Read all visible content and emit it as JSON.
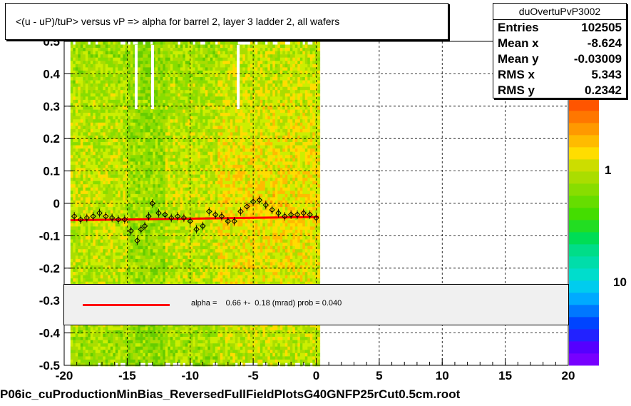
{
  "title": "<(u - uP)/tuP> versus   vP => alpha for barrel 2, layer 3 ladder 2, all wafers",
  "stats": {
    "name": "duOvertuPvP3002",
    "rows": [
      {
        "label": "Entries",
        "value": "102505"
      },
      {
        "label": "Mean x",
        "value": "-8.624"
      },
      {
        "label": "Mean y",
        "value": "-0.03009"
      },
      {
        "label": "RMS x",
        "value": "5.343"
      },
      {
        "label": "RMS y",
        "value": "0.2342"
      }
    ]
  },
  "fit_legend": {
    "text": "alpha =    0.66 +-  0.18 (mrad) prob = 0.040",
    "line_color": "#ff0000"
  },
  "footer": "P06ic_cuProductionMinBias_ReversedFullFieldPlotsG40GNFP25rCut0.5cm.root",
  "chart_data": {
    "type": "heatmap",
    "title": "<(u - uP)/tuP> versus   vP => alpha for barrel 2, layer 3 ladder 2, all wafers",
    "xlim": [
      -20,
      20
    ],
    "ylim": [
      -0.5,
      0.5
    ],
    "x_ticks": [
      "-20",
      "-15",
      "-10",
      "-5",
      "0",
      "5",
      "10",
      "15",
      "20"
    ],
    "y_ticks": [
      "-0.5",
      "-0.4",
      "-0.3",
      "-0.2",
      "-0.1",
      "0",
      "0.1",
      "0.2",
      "0.3",
      "0.4",
      "0.5"
    ],
    "grid": true,
    "log_z": true,
    "z_labels": [
      "1",
      "10"
    ],
    "filled_x_range": [
      -19.5,
      0.2
    ],
    "profile_points": {
      "x": [
        -19.2,
        -18.7,
        -18.2,
        -17.7,
        -17.2,
        -16.7,
        -16.2,
        -15.7,
        -15.2,
        -14.7,
        -14.2,
        -13.9,
        -13.6,
        -13.3,
        -13.0,
        -12.5,
        -12.0,
        -11.5,
        -11.0,
        -10.5,
        -10.0,
        -9.5,
        -9.0,
        -8.5,
        -8.0,
        -7.5,
        -7.0,
        -6.5,
        -6.0,
        -5.5,
        -5.0,
        -4.5,
        -4.0,
        -3.5,
        -3.0,
        -2.5,
        -2.0,
        -1.5,
        -1.0,
        -0.5,
        0.0
      ],
      "y": [
        -0.04,
        -0.05,
        -0.045,
        -0.04,
        -0.03,
        -0.04,
        -0.045,
        -0.05,
        -0.05,
        -0.085,
        -0.115,
        -0.08,
        -0.07,
        -0.04,
        0.0,
        -0.03,
        -0.035,
        -0.045,
        -0.04,
        -0.045,
        -0.055,
        -0.08,
        -0.07,
        -0.025,
        -0.035,
        -0.04,
        -0.055,
        -0.055,
        -0.025,
        -0.01,
        0.005,
        0.01,
        -0.005,
        -0.02,
        -0.03,
        -0.04,
        -0.035,
        -0.035,
        -0.03,
        -0.035,
        -0.045
      ]
    },
    "fit_line": {
      "x": [
        -19.5,
        0.2
      ],
      "y": [
        -0.052,
        -0.042
      ],
      "color": "#ff0000"
    },
    "colors": {
      "high": "#ff4400",
      "mid": "#ffcc00",
      "low": "#66cc00",
      "profile_marker": "#000000"
    }
  }
}
